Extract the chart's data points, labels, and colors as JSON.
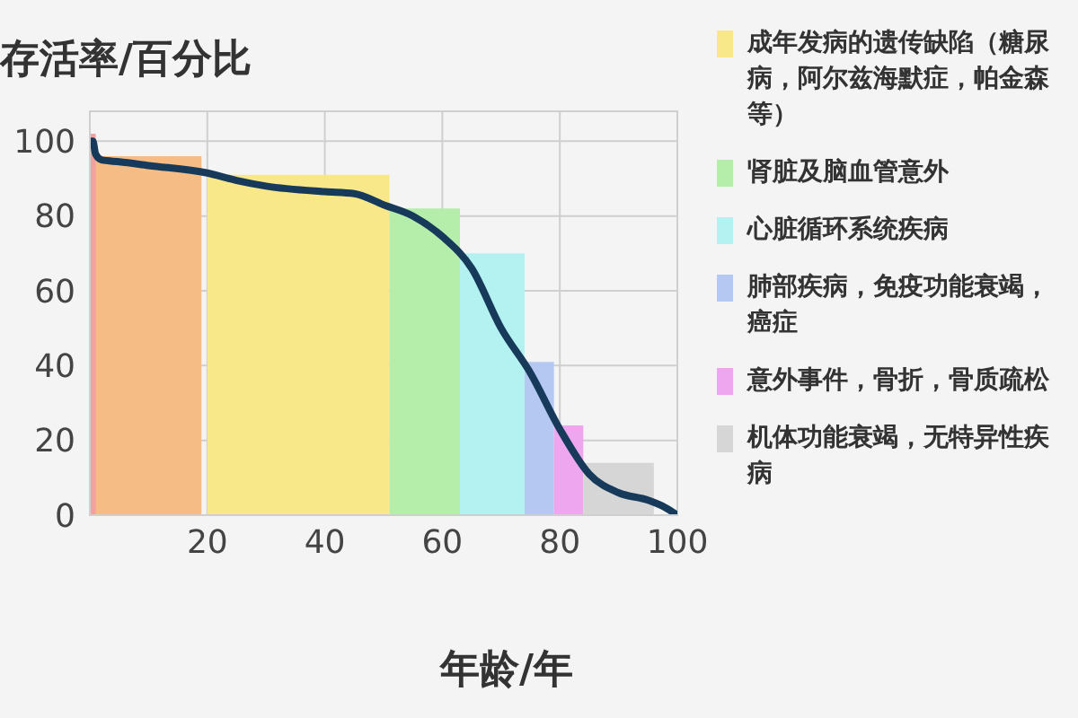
{
  "chart_data": {
    "type": "histogram",
    "ylabel": "存活率/百分比",
    "xlabel": "年龄/年",
    "xlim": [
      0,
      100
    ],
    "ylim": [
      0,
      108
    ],
    "xticks": [
      20,
      40,
      60,
      80,
      100
    ],
    "yticks": [
      0,
      20,
      40,
      60,
      80,
      100
    ],
    "grid": true,
    "legend": "right",
    "series": [
      {
        "color": "#f5bd85",
        "bins": [
          0,
          19
        ],
        "values": [
          96
        ]
      },
      {
        "color": "#f2a0a0",
        "bins": [
          0,
          1
        ],
        "values": [
          102
        ]
      },
      {
        "name": "成年发病的遗传缺陷（糖尿病，阿尔兹海默症，帕金森等）",
        "color": "#f8e88a",
        "bins": [
          20,
          51
        ],
        "values": [
          91
        ]
      },
      {
        "name": "肾脏及脑血管意外",
        "color": "#b4eeaa",
        "bins": [
          51,
          63
        ],
        "values": [
          82
        ]
      },
      {
        "name": "心脏循环系统疾病",
        "color": "#b4f1f1",
        "bins": [
          63,
          74
        ],
        "values": [
          70
        ]
      },
      {
        "name": "肺部疾病，免疫功能衰竭，癌症",
        "color": "#b4c8f2",
        "bins": [
          74,
          79
        ],
        "values": [
          41
        ]
      },
      {
        "name": "意外事件，骨折，骨质疏松",
        "color": "#eea6ee",
        "bins": [
          79,
          84
        ],
        "values": [
          24
        ]
      },
      {
        "name": "机体功能衰竭，无特异性疾病",
        "color": "#d6d6d6",
        "bins": [
          84,
          96
        ],
        "values": [
          14
        ]
      },
      {
        "type": "line",
        "color": "#173a5a",
        "x": [
          0,
          0.5,
          1,
          2,
          5,
          10,
          20,
          25,
          30,
          40,
          45,
          50,
          55,
          60,
          65,
          70,
          75,
          80,
          85,
          90,
          95,
          98,
          100
        ],
        "values": [
          100,
          100,
          96.5,
          95,
          94.5,
          93.5,
          91.5,
          89.5,
          88,
          86.5,
          86,
          83,
          80,
          74.5,
          66,
          50,
          38,
          23,
          11,
          6,
          4,
          2,
          0
        ]
      }
    ]
  }
}
